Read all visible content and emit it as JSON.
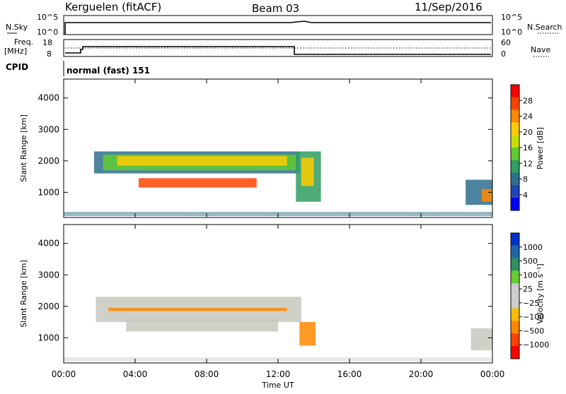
{
  "header": {
    "station": "Kerguelen (fitACF)",
    "beam": "Beam 03",
    "date": "11/Sep/2016"
  },
  "panels": {
    "nsky_label": "N.Sky",
    "nsearch_label": "N.Search",
    "freq_label_1": "Freq.",
    "freq_label_2": "[MHz]",
    "nave_label": "Nave",
    "cpid_label": "CPID",
    "cpid_value": "normal (fast) 151",
    "nsky_ticks": [
      "10^5",
      "10^0"
    ],
    "nsearch_ticks": [
      "10^5",
      "10^0"
    ],
    "freq_ticks": [
      "18",
      "8"
    ],
    "nave_ticks": [
      "60",
      "0"
    ]
  },
  "chart_data": [
    {
      "type": "heatmap",
      "name": "power",
      "ylabel": "Slant Range [km]",
      "xlabel": "Time UT",
      "xlim_hours": [
        0,
        24
      ],
      "ylim": [
        200,
        4600
      ],
      "yticks": [
        1000,
        2000,
        3000,
        4000
      ],
      "xticks": [
        "00:00",
        "04:00",
        "08:00",
        "12:00",
        "16:00",
        "20:00",
        "00:00"
      ],
      "colorbar": {
        "label": "Power [dB]",
        "ticks": [
          "28",
          "24",
          "20",
          "16",
          "12",
          "8",
          "4"
        ],
        "colors": [
          "#ff0000",
          "#ff4400",
          "#ff8800",
          "#ffcc00",
          "#c8e000",
          "#60cc30",
          "#2f9e60",
          "#2f6f8f",
          "#2244bb",
          "#0000ff"
        ]
      },
      "regions": [
        {
          "t0": 1.7,
          "t1": 13.2,
          "r0": 1600,
          "r1": 2300,
          "color": "#2f6f8f"
        },
        {
          "t0": 2.2,
          "t1": 13.0,
          "r0": 1700,
          "r1": 2200,
          "color": "#60cc30"
        },
        {
          "t0": 3.0,
          "t1": 12.5,
          "r0": 1850,
          "r1": 2150,
          "color": "#ffcc00"
        },
        {
          "t0": 4.2,
          "t1": 10.8,
          "r0": 1150,
          "r1": 1450,
          "color": "#ff4400"
        },
        {
          "t0": 13.0,
          "t1": 14.4,
          "r0": 700,
          "r1": 2300,
          "color": "#2f9e60"
        },
        {
          "t0": 13.3,
          "t1": 14.0,
          "r0": 1200,
          "r1": 2100,
          "color": "#ffcc00"
        },
        {
          "t0": 22.5,
          "t1": 24.0,
          "r0": 600,
          "r1": 1400,
          "color": "#2f6f8f"
        },
        {
          "t0": 23.4,
          "t1": 24.0,
          "r0": 700,
          "r1": 1100,
          "color": "#ff8800"
        }
      ]
    },
    {
      "type": "heatmap",
      "name": "velocity",
      "ylabel": "Slant Range [km]",
      "xlabel": "Time UT",
      "xlim_hours": [
        0,
        24
      ],
      "ylim": [
        200,
        4600
      ],
      "yticks": [
        1000,
        2000,
        3000,
        4000
      ],
      "xticks": [
        "00:00",
        "04:00",
        "08:00",
        "12:00",
        "16:00",
        "20:00",
        "00:00"
      ],
      "colorbar": {
        "label": "Velocity [m s⁻¹]",
        "ticks": [
          "1000",
          "500",
          "100",
          "25",
          "−25",
          "−100",
          "−500",
          "−1000"
        ],
        "colors": [
          "#0033cc",
          "#2266aa",
          "#2f8f5f",
          "#66cc33",
          "#cccccc",
          "#cccccc",
          "#ffbb00",
          "#ff8800",
          "#ff4400",
          "#ff0000"
        ]
      },
      "regions": [
        {
          "t0": 1.8,
          "t1": 13.3,
          "r0": 1500,
          "r1": 2300,
          "color": "#c8c8c0"
        },
        {
          "t0": 3.5,
          "t1": 12.0,
          "r0": 1200,
          "r1": 1600,
          "color": "#c8c8c0"
        },
        {
          "t0": 2.5,
          "t1": 12.5,
          "r0": 1850,
          "r1": 1950,
          "color": "#ff8800"
        },
        {
          "t0": 13.2,
          "t1": 14.1,
          "r0": 750,
          "r1": 1500,
          "color": "#ff8800"
        },
        {
          "t0": 22.8,
          "t1": 24.0,
          "r0": 600,
          "r1": 1300,
          "color": "#c8c8c0"
        }
      ]
    }
  ]
}
